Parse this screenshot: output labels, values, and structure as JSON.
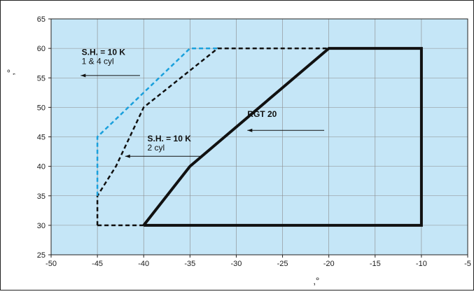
{
  "chart_data": {
    "type": "line",
    "title": "",
    "xlabel": "‚°",
    "ylabel": "‚°",
    "xlim": [
      -50,
      -5
    ],
    "ylim": [
      25,
      65
    ],
    "x_ticks": [
      -50,
      -45,
      -40,
      -35,
      -30,
      -25,
      -20,
      -15,
      -10,
      -5
    ],
    "y_ticks": [
      25,
      30,
      35,
      40,
      45,
      50,
      55,
      60,
      65
    ],
    "grid": true,
    "series": [
      {
        "name": "RGT 20",
        "style": "solid",
        "color": "#111111",
        "x": [
          -40,
          -35,
          -20,
          -10,
          -10,
          -40
        ],
        "y": [
          30,
          40,
          60,
          60,
          30,
          30
        ]
      },
      {
        "name": "S.H. = 10 K 2 cyl",
        "style": "dashed",
        "color": "#111111",
        "x": [
          -45,
          -45,
          -43,
          -40,
          -32,
          -20
        ],
        "y": [
          30,
          35,
          40,
          50,
          60,
          60
        ]
      },
      {
        "name": "S.H. = 10 K 1 & 4 cyl",
        "style": "dashed",
        "color": "#1aa0dc",
        "x": [
          -45,
          -45,
          -35,
          -32
        ],
        "y": [
          35,
          45,
          60,
          60
        ]
      },
      {
        "name": "",
        "style": "dashed",
        "color": "#111111",
        "x": [
          -45,
          -40
        ],
        "y": [
          30,
          30
        ]
      }
    ],
    "annotations": [
      {
        "id": "rgt",
        "lines": [
          "RGT 20"
        ],
        "bold": [
          true
        ]
      },
      {
        "id": "sh2",
        "lines": [
          "S.H. = 10 K",
          "2 cyl"
        ],
        "bold": [
          true,
          false
        ]
      },
      {
        "id": "sh14",
        "lines": [
          "S.H. = 10 K",
          "1 & 4 cyl"
        ],
        "bold": [
          true,
          false
        ]
      }
    ],
    "colors": {
      "background": "#c5e6f7",
      "grid": "#8a8a8a",
      "border": "#222222",
      "envelope": "#111111",
      "dashed_blue": "#1aa0dc"
    }
  }
}
